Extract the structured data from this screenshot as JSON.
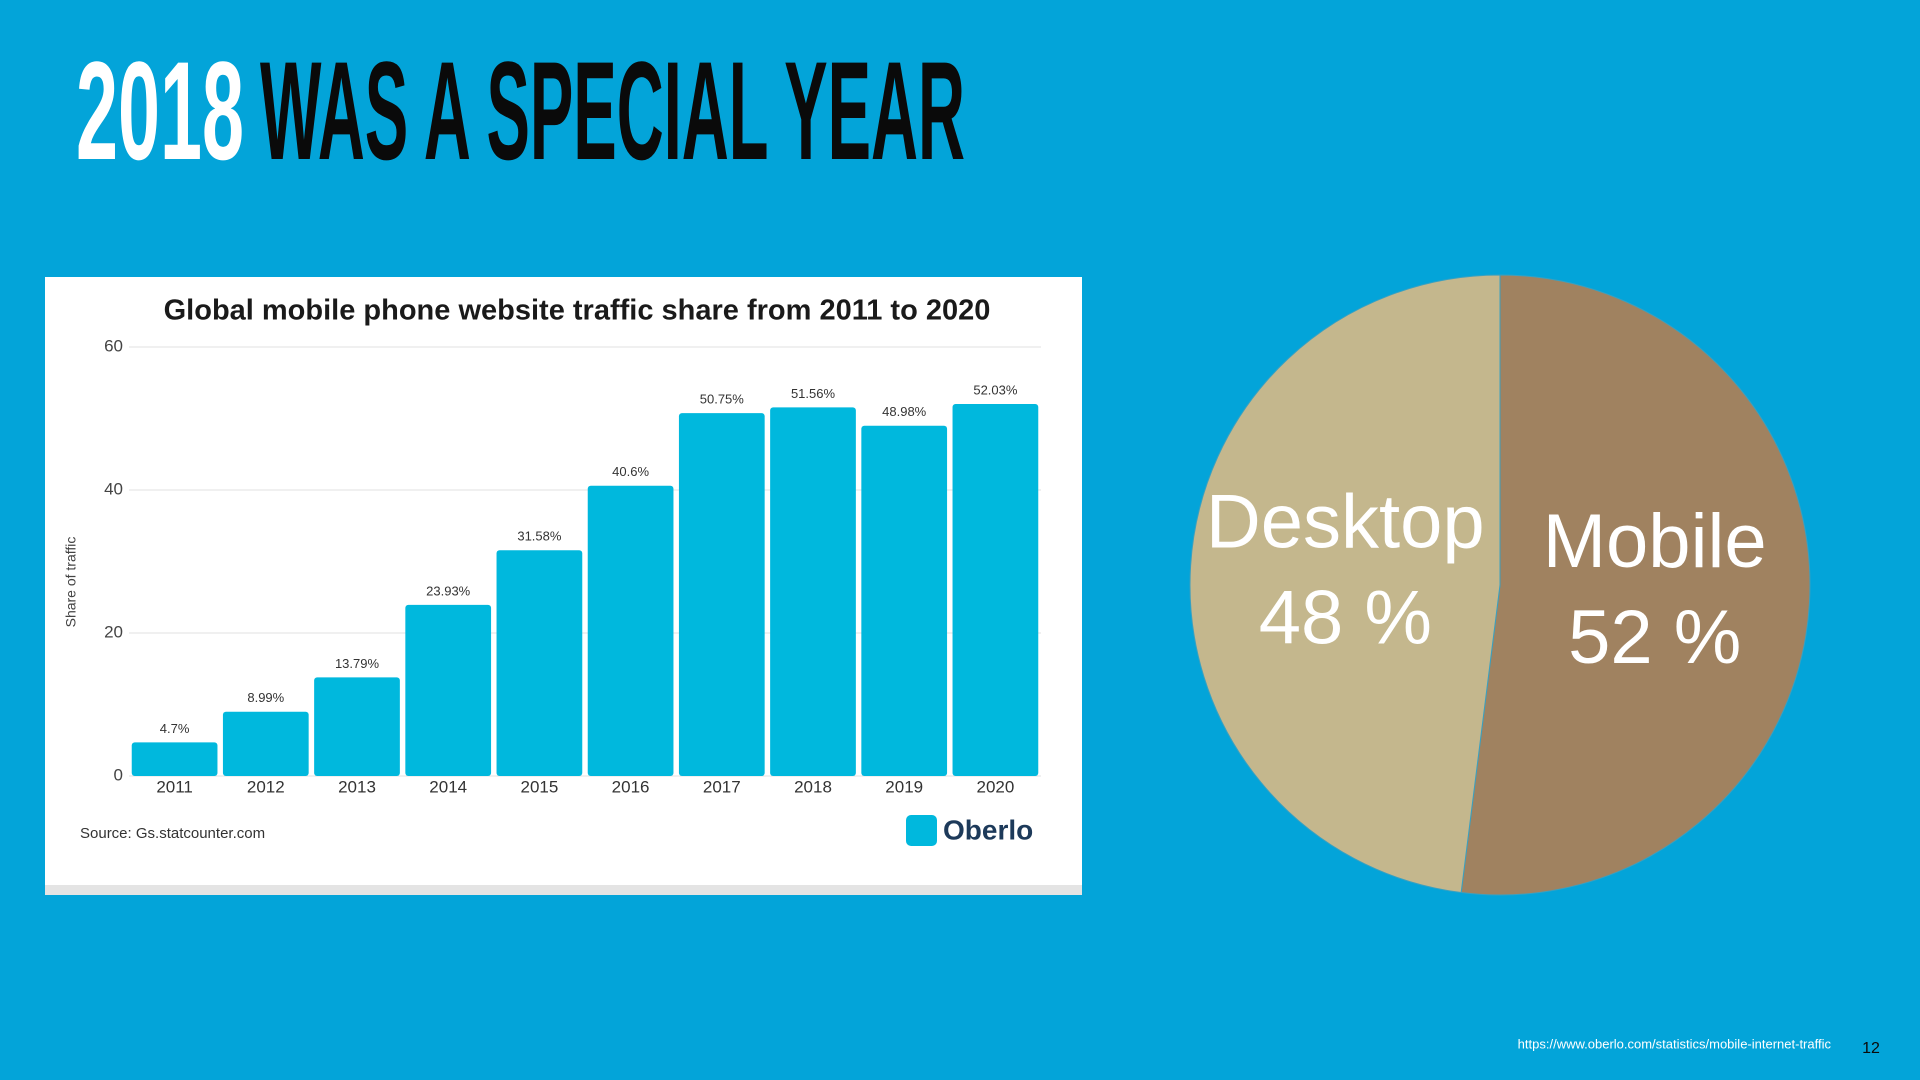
{
  "slide": {
    "title_highlight": "2018",
    "title_rest": "WAS A SPECIAL YEAR",
    "source_url": "https://www.oberlo.com/statistics/mobile-internet-traffic",
    "page_number": "12"
  },
  "chart_data": [
    {
      "type": "bar",
      "title": "Global mobile phone website traffic share from 2011 to 2020",
      "y_label": "Share of traffic",
      "source": "Source: Gs.statcounter.com",
      "logo": "Oberlo",
      "categories": [
        "2011",
        "2012",
        "2013",
        "2014",
        "2015",
        "2016",
        "2017",
        "2018",
        "2019",
        "2020"
      ],
      "values": [
        4.7,
        8.99,
        13.79,
        23.93,
        31.58,
        40.6,
        50.75,
        51.56,
        48.98,
        52.03
      ],
      "value_labels": [
        "4.7%",
        "8.99%",
        "13.79%",
        "23.93%",
        "31.58%",
        "40.6%",
        "50.75%",
        "51.56%",
        "48.98%",
        "52.03%"
      ],
      "color": "#00b8dd",
      "ylim": [
        0,
        60
      ],
      "yticks": [
        0,
        20,
        40,
        60
      ],
      "grid": true
    },
    {
      "type": "pie",
      "categories": [
        "Desktop",
        "Mobile"
      ],
      "values": [
        48,
        52
      ],
      "value_labels": [
        "48 %",
        "52 %"
      ],
      "colors": [
        "#c4b78d",
        "#a08260"
      ]
    }
  ]
}
